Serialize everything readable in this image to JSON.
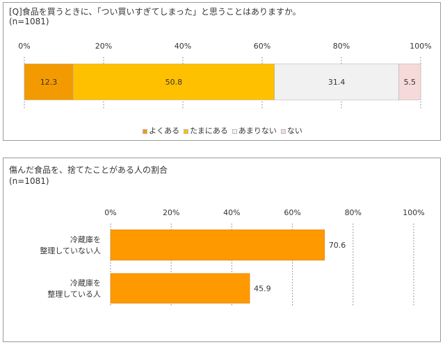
{
  "panel1": {
    "title": "[Q]食品を買うときに、「つい買いすぎてしまった」と思うことはありますか。",
    "subtitle": "(n=1081)"
  },
  "panel2": {
    "title": "傷んだ食品を、捨てたことがある人の割合",
    "subtitle": "(n=1081)"
  },
  "chart_data": [
    {
      "type": "bar",
      "orientation": "horizontal",
      "stacked": true,
      "title": "[Q]食品を買うときに、「つい買いすぎてしまった」と思うことはありますか。",
      "subtitle": "(n=1081)",
      "xlim": [
        0,
        100
      ],
      "xticks": [
        "0%",
        "20%",
        "40%",
        "60%",
        "80%",
        "100%"
      ],
      "grid": true,
      "legend_position": "bottom",
      "series": [
        {
          "name": "よくある",
          "values": [
            12.3
          ],
          "color": "#f39a00"
        },
        {
          "name": "たまにある",
          "values": [
            50.8
          ],
          "color": "#ffc000"
        },
        {
          "name": "あまりない",
          "values": [
            31.4
          ],
          "color": "#f1f1f1"
        },
        {
          "name": "ない",
          "values": [
            5.5
          ],
          "color": "#f6dada"
        }
      ]
    },
    {
      "type": "bar",
      "orientation": "horizontal",
      "title": "傷んだ食品を、捨てたことがある人の割合",
      "subtitle": "(n=1081)",
      "categories": [
        [
          "冷蔵庫を",
          "整理していない人"
        ],
        [
          "冷蔵庫を",
          "整理している人"
        ]
      ],
      "values": [
        70.6,
        45.9
      ],
      "color": "#ff9900",
      "xlim": [
        0,
        100
      ],
      "xticks": [
        "0%",
        "20%",
        "40%",
        "60%",
        "80%",
        "100%"
      ],
      "grid": true
    }
  ]
}
